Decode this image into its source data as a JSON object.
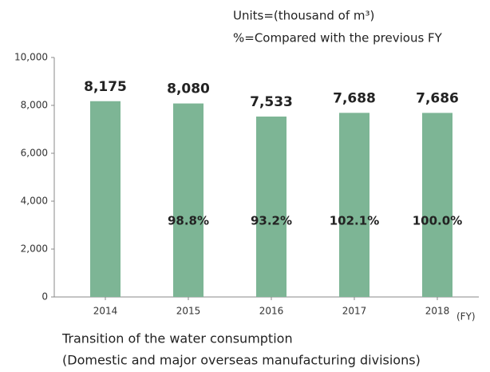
{
  "chart_data": {
    "type": "bar",
    "notes": [
      "Units=(thousand of m³)",
      "%=Compared with the previous FY"
    ],
    "title": "Transition of the water consumption",
    "subtitle": "(Domestic and major overseas manufacturing divisions)",
    "x_unit": "(FY)",
    "categories": [
      "2014",
      "2015",
      "2016",
      "2017",
      "2018"
    ],
    "values": [
      8175,
      8080,
      7533,
      7688,
      7686
    ],
    "value_labels": [
      "8,175",
      "8,080",
      "7,533",
      "7,688",
      "7,686"
    ],
    "change_labels": [
      null,
      "98.8%",
      "93.2%",
      "102.1%",
      "100.0%"
    ],
    "color": "#7db595",
    "ylim": [
      0,
      10000
    ],
    "yticks": [
      0,
      {
        "value": 2000,
        "label": "2,000"
      },
      {
        "value": 4000,
        "label": "4,000"
      },
      {
        "value": 6000,
        "label": "6,000"
      },
      {
        "value": 8000,
        "label": "8,000"
      },
      {
        "value": 10000,
        "label": "10,000"
      }
    ],
    "grid": false
  }
}
